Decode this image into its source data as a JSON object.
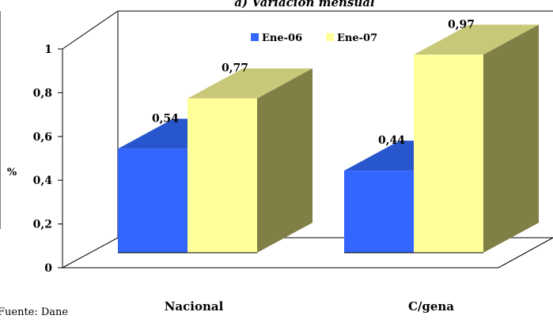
{
  "chart_data": {
    "type": "bar",
    "title": "a) Variación mensual",
    "ylabel": "%",
    "xlabel": "",
    "ylim": [
      0,
      1
    ],
    "yticks": [
      "0",
      "0,2",
      "0,4",
      "0,6",
      "0,8",
      "1"
    ],
    "categories": [
      "Nacional",
      "C/gena"
    ],
    "series": [
      {
        "name": "Ene-06",
        "values": [
          0.54,
          0.44
        ],
        "labels": [
          "0,54",
          "0,44"
        ],
        "color": "#3366ff"
      },
      {
        "name": "Ene-07",
        "values": [
          0.77,
          0.97
        ],
        "labels": [
          "0,77",
          "0,97"
        ],
        "color": "#ffff99"
      }
    ],
    "grid": false,
    "legend": "top-right"
  },
  "source_text": "Fuente: Dane"
}
